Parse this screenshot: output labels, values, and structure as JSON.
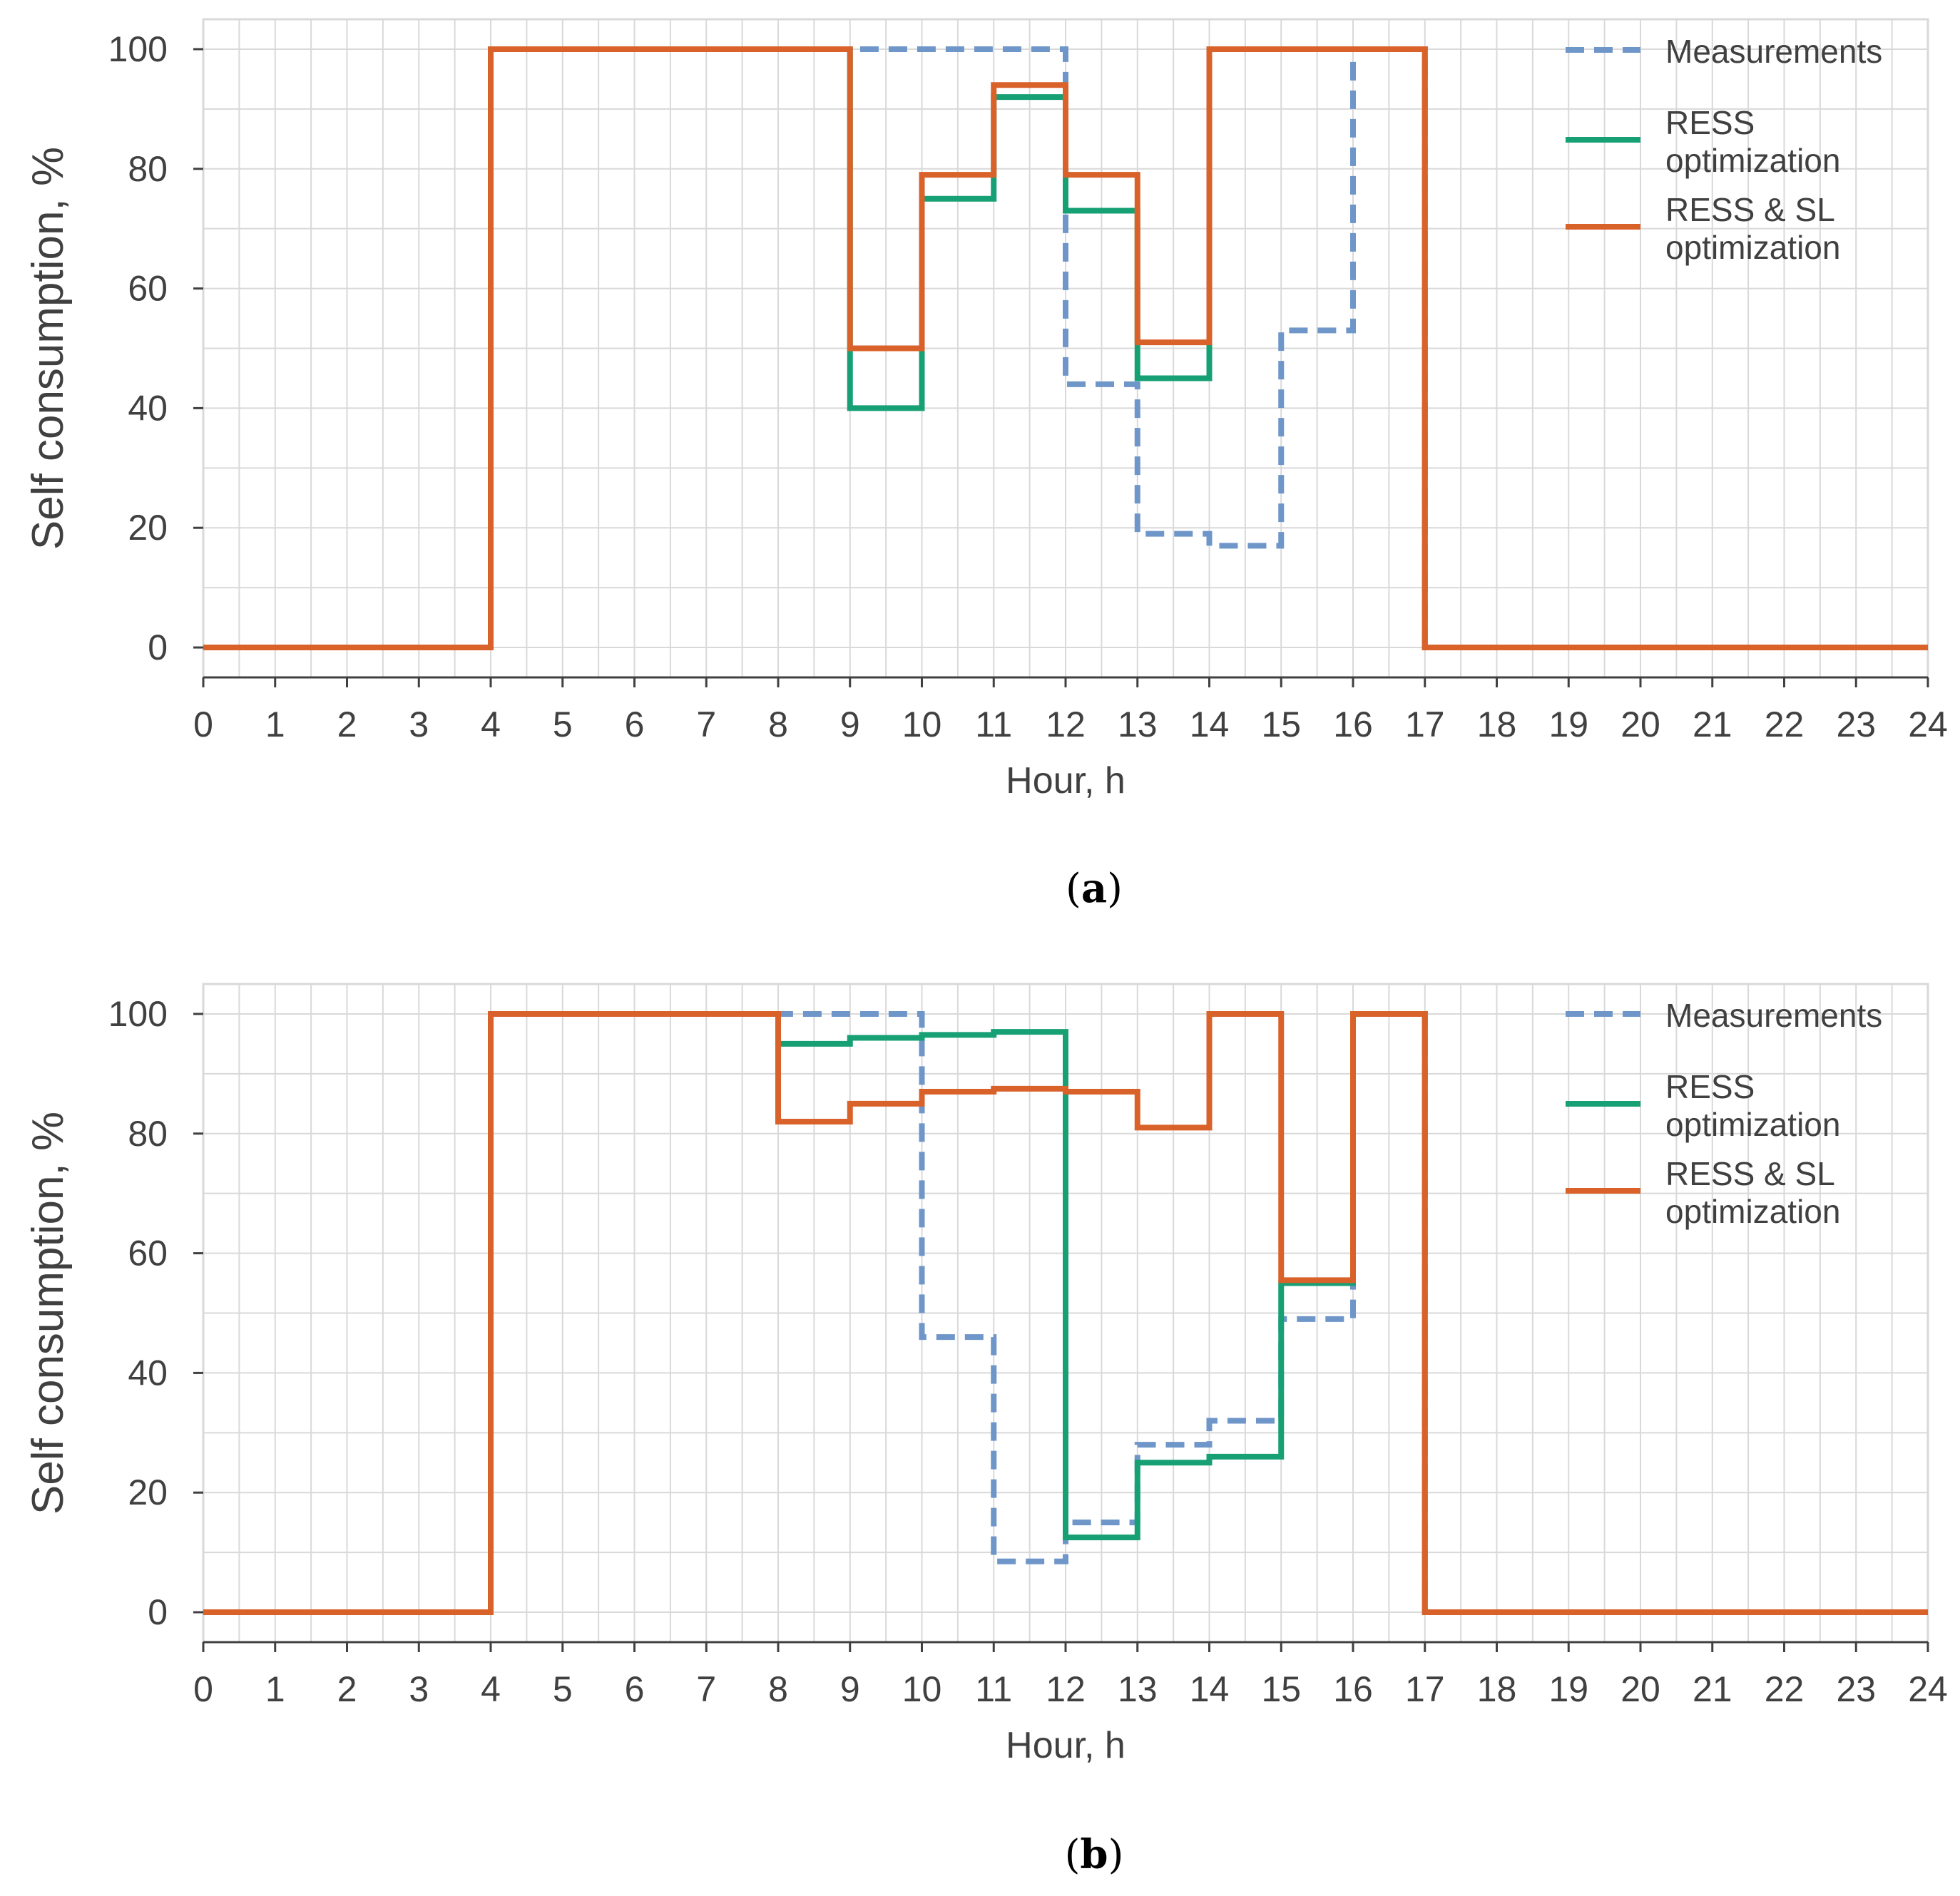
{
  "figure": {
    "panels": [
      "a",
      "b"
    ]
  },
  "colors": {
    "measurements": "#6f96c9",
    "ress": "#17a074",
    "ress_sl": "#d9622b",
    "grid": "#d9d9d9",
    "axis": "#404040",
    "text": "#404040",
    "caption": "#000000"
  },
  "chart_data": [
    {
      "id": "a",
      "type": "line",
      "step": "post",
      "caption_letter": "a",
      "xlabel": "Hour, h",
      "ylabel": "Self consumption, %",
      "xlim": [
        0,
        24
      ],
      "ylim": [
        -5,
        105
      ],
      "x_ticks": [
        0,
        1,
        2,
        3,
        4,
        5,
        6,
        7,
        8,
        9,
        10,
        11,
        12,
        13,
        14,
        15,
        16,
        17,
        18,
        19,
        20,
        21,
        22,
        23,
        24
      ],
      "y_ticks": [
        0,
        20,
        40,
        60,
        80,
        100
      ],
      "grid": true,
      "legend": "top-right",
      "x": [
        0,
        1,
        2,
        3,
        4,
        5,
        6,
        7,
        8,
        9,
        10,
        11,
        12,
        13,
        14,
        15,
        16,
        17,
        18,
        19,
        20,
        21,
        22,
        23,
        24
      ],
      "series": [
        {
          "key": "measurements",
          "name_lines": [
            "Measurements"
          ],
          "style": "dashed",
          "values": [
            0,
            0,
            0,
            0,
            100,
            100,
            100,
            100,
            100,
            100,
            100,
            100,
            44,
            19,
            17,
            53,
            100,
            0,
            0,
            0,
            0,
            0,
            0,
            0,
            0
          ]
        },
        {
          "key": "ress",
          "name_lines": [
            "RESS",
            "optimization"
          ],
          "style": "solid",
          "values": [
            0,
            0,
            0,
            0,
            100,
            100,
            100,
            100,
            100,
            40,
            75,
            92,
            73,
            45,
            100,
            100,
            100,
            0,
            0,
            0,
            0,
            0,
            0,
            0,
            0
          ]
        },
        {
          "key": "ress_sl",
          "name_lines": [
            "RESS & SL",
            "optimization"
          ],
          "style": "solid",
          "values": [
            0,
            0,
            0,
            0,
            100,
            100,
            100,
            100,
            100,
            50,
            79,
            94,
            79,
            51,
            100,
            100,
            100,
            0,
            0,
            0,
            0,
            0,
            0,
            0,
            0
          ]
        }
      ]
    },
    {
      "id": "b",
      "type": "line",
      "step": "post",
      "caption_letter": "b",
      "xlabel": "Hour, h",
      "ylabel": "Self consumption, %",
      "xlim": [
        0,
        24
      ],
      "ylim": [
        -5,
        105
      ],
      "x_ticks": [
        0,
        1,
        2,
        3,
        4,
        5,
        6,
        7,
        8,
        9,
        10,
        11,
        12,
        13,
        14,
        15,
        16,
        17,
        18,
        19,
        20,
        21,
        22,
        23,
        24
      ],
      "y_ticks": [
        0,
        20,
        40,
        60,
        80,
        100
      ],
      "grid": true,
      "legend": "top-right",
      "x": [
        0,
        1,
        2,
        3,
        4,
        5,
        6,
        7,
        8,
        9,
        10,
        11,
        12,
        13,
        14,
        15,
        16,
        17,
        18,
        19,
        20,
        21,
        22,
        23,
        24
      ],
      "series": [
        {
          "key": "measurements",
          "name_lines": [
            "Measurements"
          ],
          "style": "dashed",
          "values": [
            0,
            0,
            0,
            0,
            100,
            100,
            100,
            100,
            100,
            100,
            46,
            8.5,
            15,
            28,
            32,
            49,
            100,
            0,
            0,
            0,
            0,
            0,
            0,
            0,
            0
          ]
        },
        {
          "key": "ress",
          "name_lines": [
            "RESS",
            "optimization"
          ],
          "style": "solid",
          "values": [
            0,
            0,
            0,
            0,
            100,
            100,
            100,
            100,
            95,
            96,
            96.5,
            97,
            12.5,
            25,
            26,
            55,
            100,
            0,
            0,
            0,
            0,
            0,
            0,
            0,
            0
          ]
        },
        {
          "key": "ress_sl",
          "name_lines": [
            "RESS & SL",
            "optimization"
          ],
          "style": "solid",
          "values": [
            0,
            0,
            0,
            0,
            100,
            100,
            100,
            100,
            82,
            85,
            87,
            87.5,
            87,
            81,
            100,
            55.5,
            100,
            0,
            0,
            0,
            0,
            0,
            0,
            0,
            0
          ]
        }
      ]
    }
  ]
}
